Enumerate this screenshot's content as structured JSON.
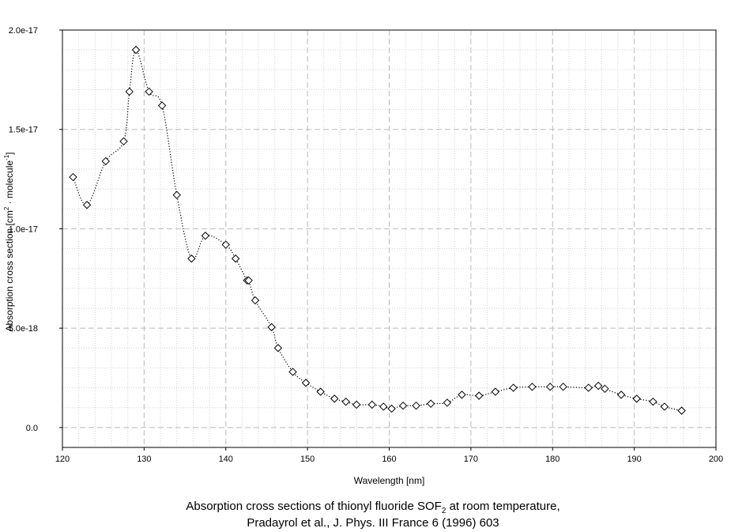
{
  "chart_data": {
    "type": "line",
    "xlabel": "Wavelength [nm]",
    "ylabel_parts": {
      "a": "Absorption cross section [cm",
      "sup": "2",
      "b": " · molecule",
      "sup2": "-1",
      "c": "]"
    },
    "xlim": [
      120,
      200
    ],
    "ylim": [
      -1e-18,
      2e-17
    ],
    "x_ticks": [
      "120",
      "130",
      "140",
      "150",
      "160",
      "170",
      "180",
      "190",
      "200"
    ],
    "y_ticks": [
      "0.0",
      "5.0e-18",
      "1.0e-17",
      "1.5e-17",
      "2.0e-17"
    ],
    "grid": true,
    "series": [
      {
        "marker": "diamond",
        "line_style": "dotted",
        "points": [
          [
            121.3,
            1.26e-17
          ],
          [
            123.0,
            1.12e-17
          ],
          [
            125.3,
            1.34e-17
          ],
          [
            127.5,
            1.44e-17
          ],
          [
            128.2,
            1.69e-17
          ],
          [
            129.0,
            1.9e-17
          ],
          [
            130.6,
            1.69e-17
          ],
          [
            132.2,
            1.62e-17
          ],
          [
            134.0,
            1.17e-17
          ],
          [
            135.8,
            8.5e-18
          ],
          [
            137.5,
            9.65e-18
          ],
          [
            140.0,
            9.2e-18
          ],
          [
            141.2,
            8.5e-18
          ],
          [
            142.6,
            7.4e-18
          ],
          [
            142.8,
            7.4e-18
          ],
          [
            143.6,
            6.4e-18
          ],
          [
            145.6,
            5.05e-18
          ],
          [
            146.4,
            4e-18
          ],
          [
            148.2,
            2.8e-18
          ],
          [
            149.8,
            2.25e-18
          ],
          [
            151.6,
            1.8e-18
          ],
          [
            153.3,
            1.45e-18
          ],
          [
            154.7,
            1.3e-18
          ],
          [
            156.0,
            1.15e-18
          ],
          [
            157.9,
            1.15e-18
          ],
          [
            159.3,
            1.05e-18
          ],
          [
            160.3,
            9.5e-19
          ],
          [
            161.7,
            1.1e-18
          ],
          [
            163.3,
            1.1e-18
          ],
          [
            165.1,
            1.2e-18
          ],
          [
            167.1,
            1.25e-18
          ],
          [
            168.9,
            1.65e-18
          ],
          [
            171.0,
            1.6e-18
          ],
          [
            173.0,
            1.8e-18
          ],
          [
            175.2,
            2e-18
          ],
          [
            177.5,
            2.05e-18
          ],
          [
            179.7,
            2.05e-18
          ],
          [
            181.3,
            2.05e-18
          ],
          [
            184.4,
            2e-18
          ],
          [
            185.6,
            2.1e-18
          ],
          [
            186.4,
            1.95e-18
          ],
          [
            188.4,
            1.65e-18
          ],
          [
            190.3,
            1.45e-18
          ],
          [
            192.3,
            1.3e-18
          ],
          [
            193.7,
            1.05e-18
          ],
          [
            195.8,
            8.5e-19
          ]
        ]
      }
    ]
  },
  "caption": {
    "line1_a": "Absorption cross sections of thionyl fluoride SOF",
    "line1_sub": "2",
    "line1_b": " at room temperature,",
    "line2": "Pradayrol et al., J. Phys. III France 6 (1996) 603"
  }
}
